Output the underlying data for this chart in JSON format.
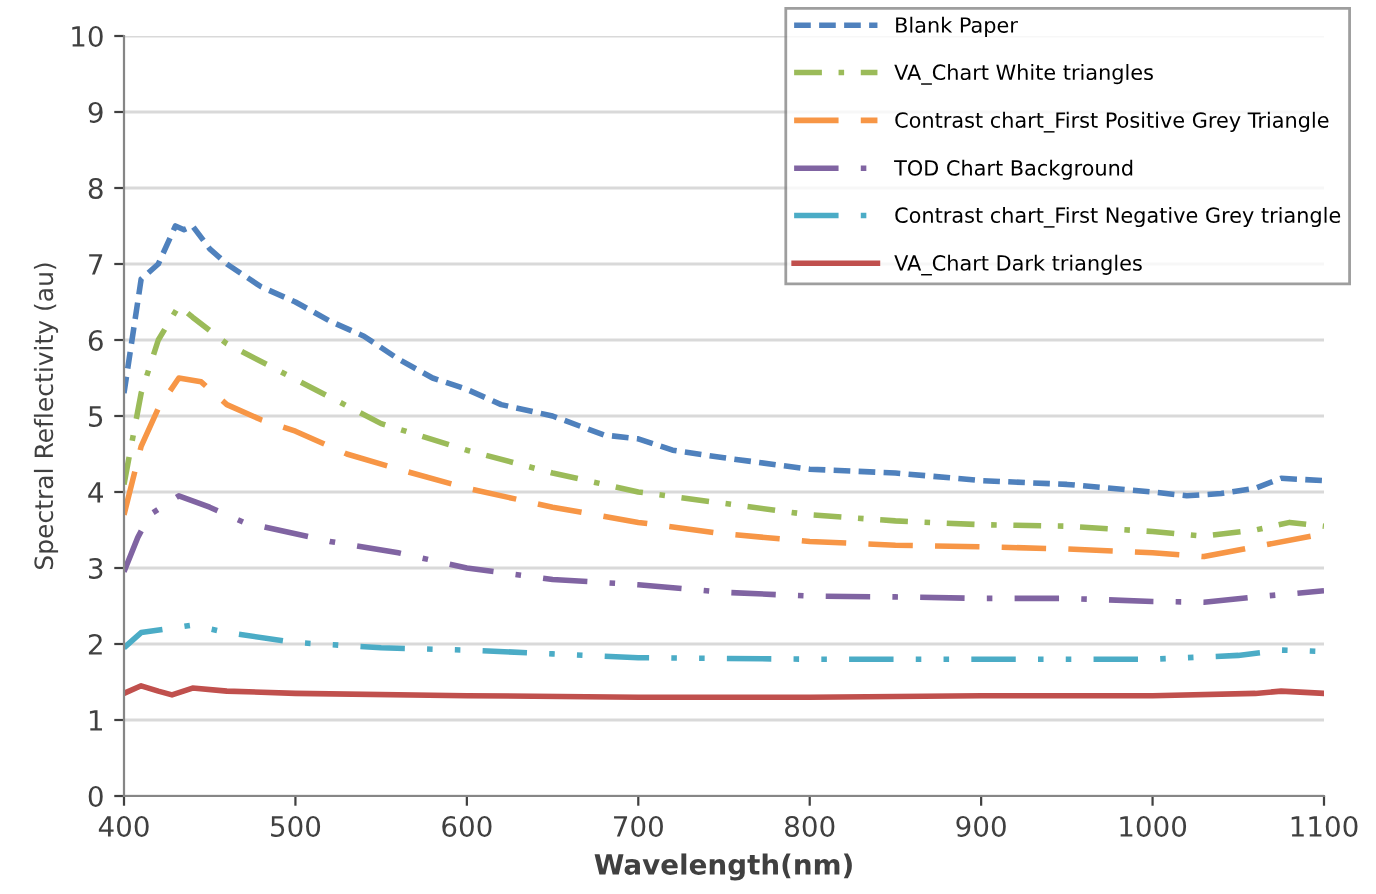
{
  "chart_data": {
    "type": "line",
    "xlabel": "Wavelength(nm)",
    "ylabel": "Spectral Reflectivity (au)",
    "xlim": [
      400,
      1100
    ],
    "xticks": [
      400,
      500,
      600,
      700,
      800,
      900,
      1000,
      1100
    ],
    "ylim": [
      0,
      10
    ],
    "yticks": [
      0,
      1,
      2,
      3,
      4,
      5,
      6,
      7,
      8,
      9,
      10
    ],
    "grid": "y",
    "legend": "top right",
    "marker": "none",
    "series": [
      {
        "name": "Blank Paper",
        "color": "#4f81bd",
        "line_style": "dashed",
        "x": [
          400,
          410,
          420,
          430,
          435,
          440,
          450,
          460,
          480,
          500,
          520,
          540,
          560,
          580,
          600,
          620,
          650,
          680,
          700,
          720,
          750,
          800,
          850,
          900,
          950,
          1000,
          1020,
          1040,
          1060,
          1075,
          1100
        ],
        "values": [
          5.3,
          6.8,
          7.0,
          7.5,
          7.45,
          7.5,
          7.2,
          7.0,
          6.7,
          6.5,
          6.25,
          6.05,
          5.75,
          5.5,
          5.35,
          5.15,
          5.0,
          4.75,
          4.7,
          4.55,
          4.45,
          4.3,
          4.25,
          4.15,
          4.1,
          4.0,
          3.95,
          3.98,
          4.05,
          4.18,
          4.15
        ]
      },
      {
        "name": "VA_Chart White triangles",
        "color": "#9bbb59",
        "line_style": "dashdot",
        "x": [
          400,
          410,
          420,
          432,
          440,
          460,
          490,
          520,
          550,
          600,
          650,
          700,
          750,
          800,
          850,
          900,
          950,
          1000,
          1030,
          1060,
          1080,
          1100
        ],
        "values": [
          4.1,
          5.3,
          6.0,
          6.45,
          6.3,
          5.95,
          5.6,
          5.25,
          4.9,
          4.55,
          4.25,
          4.0,
          3.85,
          3.7,
          3.62,
          3.57,
          3.55,
          3.48,
          3.42,
          3.5,
          3.6,
          3.55
        ]
      },
      {
        "name": "Contrast chart_First Positive Grey Triangle",
        "color": "#f79646",
        "line_style": "longdash",
        "x": [
          400,
          410,
          420,
          432,
          445,
          460,
          480,
          500,
          530,
          560,
          600,
          650,
          700,
          750,
          800,
          850,
          900,
          950,
          1000,
          1030,
          1060,
          1100
        ],
        "values": [
          3.7,
          4.6,
          5.1,
          5.5,
          5.45,
          5.15,
          4.95,
          4.8,
          4.5,
          4.3,
          4.05,
          3.8,
          3.6,
          3.45,
          3.35,
          3.3,
          3.28,
          3.25,
          3.2,
          3.15,
          3.28,
          3.45
        ]
      },
      {
        "name": "TOD Chart Background",
        "color": "#8064a2",
        "line_style": "longdashdot",
        "x": [
          400,
          408,
          415,
          432,
          450,
          470,
          500,
          520,
          560,
          600,
          650,
          700,
          750,
          800,
          850,
          900,
          950,
          1000,
          1030,
          1060,
          1100
        ],
        "values": [
          2.95,
          3.4,
          3.7,
          3.95,
          3.8,
          3.6,
          3.45,
          3.35,
          3.2,
          3.0,
          2.85,
          2.78,
          2.68,
          2.63,
          2.62,
          2.6,
          2.6,
          2.56,
          2.55,
          2.62,
          2.7
        ]
      },
      {
        "name": "Contrast chart_First Negative Grey triangle",
        "color": "#4bacc6",
        "line_style": "dashdotdot",
        "x": [
          400,
          410,
          440,
          460,
          500,
          550,
          600,
          650,
          700,
          800,
          900,
          1000,
          1050,
          1075,
          1100
        ],
        "values": [
          1.95,
          2.15,
          2.25,
          2.15,
          2.02,
          1.95,
          1.92,
          1.87,
          1.82,
          1.8,
          1.8,
          1.8,
          1.85,
          1.92,
          1.9
        ]
      },
      {
        "name": "VA_Chart Dark triangles",
        "color": "#c0504d",
        "line_style": "solid",
        "x": [
          400,
          410,
          420,
          428,
          440,
          460,
          500,
          600,
          700,
          800,
          900,
          1000,
          1060,
          1075,
          1100
        ],
        "values": [
          1.35,
          1.45,
          1.38,
          1.33,
          1.42,
          1.38,
          1.35,
          1.32,
          1.3,
          1.3,
          1.32,
          1.32,
          1.35,
          1.38,
          1.35
        ]
      }
    ]
  }
}
